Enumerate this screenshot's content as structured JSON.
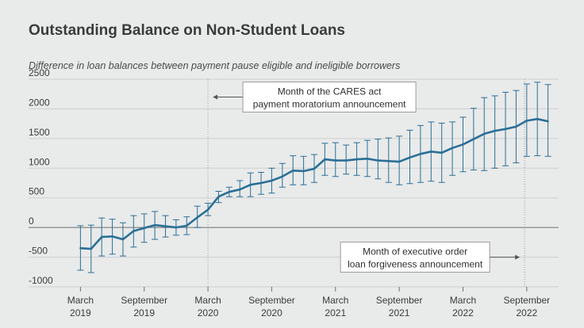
{
  "chart_data": {
    "type": "line",
    "title": "Outstanding Balance on Non-Student Loans",
    "subtitle": "Difference in loan balances between payment pause eligible and ineligible borrowers",
    "xlabel": "",
    "ylabel": "",
    "ylim": [
      -1000,
      2500
    ],
    "yticks": [
      2500,
      2000,
      1500,
      1000,
      500,
      0,
      -500,
      -1000
    ],
    "ytick_labels": [
      "2500",
      "2000",
      "1500",
      "1000",
      "500",
      "0",
      "-500",
      "-1000"
    ],
    "xticks": [
      {
        "month": 0,
        "line1": "March",
        "line2": "2019"
      },
      {
        "month": 6,
        "line1": "September",
        "line2": "2019"
      },
      {
        "month": 12,
        "line1": "March",
        "line2": "2020"
      },
      {
        "month": 18,
        "line1": "September",
        "line2": "2020"
      },
      {
        "month": 24,
        "line1": "March",
        "line2": "2021"
      },
      {
        "month": 30,
        "line1": "September",
        "line2": "2021"
      },
      {
        "month": 36,
        "line1": "March",
        "line2": "2022"
      },
      {
        "month": 42,
        "line1": "September",
        "line2": "2022"
      }
    ],
    "grid": true,
    "series": [
      {
        "color": "#2a6f97",
        "points": [
          {
            "x": 0,
            "y": -350,
            "lo": -720,
            "hi": 30
          },
          {
            "x": 1,
            "y": -360,
            "lo": -760,
            "hi": 40
          },
          {
            "x": 2,
            "y": -160,
            "lo": -480,
            "hi": 160
          },
          {
            "x": 3,
            "y": -150,
            "lo": -450,
            "hi": 140
          },
          {
            "x": 4,
            "y": -200,
            "lo": -480,
            "hi": 80
          },
          {
            "x": 5,
            "y": -60,
            "lo": -330,
            "hi": 200
          },
          {
            "x": 6,
            "y": -10,
            "lo": -250,
            "hi": 230
          },
          {
            "x": 7,
            "y": 40,
            "lo": -200,
            "hi": 270
          },
          {
            "x": 8,
            "y": 20,
            "lo": -160,
            "hi": 200
          },
          {
            "x": 9,
            "y": 0,
            "lo": -130,
            "hi": 130
          },
          {
            "x": 10,
            "y": 30,
            "lo": -120,
            "hi": 180
          },
          {
            "x": 11,
            "y": 170,
            "lo": 0,
            "hi": 360
          },
          {
            "x": 12,
            "y": 300,
            "lo": 200,
            "hi": 410
          },
          {
            "x": 13,
            "y": 520,
            "lo": 420,
            "hi": 610
          },
          {
            "x": 14,
            "y": 600,
            "lo": 520,
            "hi": 680
          },
          {
            "x": 15,
            "y": 640,
            "lo": 520,
            "hi": 790
          },
          {
            "x": 16,
            "y": 720,
            "lo": 520,
            "hi": 920
          },
          {
            "x": 17,
            "y": 750,
            "lo": 560,
            "hi": 930
          },
          {
            "x": 18,
            "y": 790,
            "lo": 580,
            "hi": 1000
          },
          {
            "x": 19,
            "y": 860,
            "lo": 680,
            "hi": 1080
          },
          {
            "x": 20,
            "y": 960,
            "lo": 720,
            "hi": 1210
          },
          {
            "x": 21,
            "y": 950,
            "lo": 720,
            "hi": 1200
          },
          {
            "x": 22,
            "y": 990,
            "lo": 760,
            "hi": 1230
          },
          {
            "x": 23,
            "y": 1150,
            "lo": 880,
            "hi": 1420
          },
          {
            "x": 24,
            "y": 1130,
            "lo": 860,
            "hi": 1430
          },
          {
            "x": 25,
            "y": 1130,
            "lo": 900,
            "hi": 1390
          },
          {
            "x": 26,
            "y": 1150,
            "lo": 880,
            "hi": 1430
          },
          {
            "x": 27,
            "y": 1160,
            "lo": 860,
            "hi": 1470
          },
          {
            "x": 28,
            "y": 1130,
            "lo": 820,
            "hi": 1490
          },
          {
            "x": 29,
            "y": 1120,
            "lo": 760,
            "hi": 1510
          },
          {
            "x": 30,
            "y": 1110,
            "lo": 720,
            "hi": 1540
          },
          {
            "x": 31,
            "y": 1180,
            "lo": 740,
            "hi": 1640
          },
          {
            "x": 32,
            "y": 1240,
            "lo": 760,
            "hi": 1720
          },
          {
            "x": 33,
            "y": 1280,
            "lo": 780,
            "hi": 1780
          },
          {
            "x": 34,
            "y": 1260,
            "lo": 760,
            "hi": 1760
          },
          {
            "x": 35,
            "y": 1340,
            "lo": 880,
            "hi": 1780
          },
          {
            "x": 36,
            "y": 1400,
            "lo": 940,
            "hi": 1860
          },
          {
            "x": 37,
            "y": 1490,
            "lo": 970,
            "hi": 2010
          },
          {
            "x": 38,
            "y": 1580,
            "lo": 960,
            "hi": 2190
          },
          {
            "x": 39,
            "y": 1630,
            "lo": 1000,
            "hi": 2220
          },
          {
            "x": 40,
            "y": 1660,
            "lo": 1040,
            "hi": 2280
          },
          {
            "x": 41,
            "y": 1700,
            "lo": 1090,
            "hi": 2310
          },
          {
            "x": 42,
            "y": 1800,
            "lo": 1200,
            "hi": 2420
          },
          {
            "x": 43,
            "y": 1830,
            "lo": 1210,
            "hi": 2450
          },
          {
            "x": 44,
            "y": 1790,
            "lo": 1200,
            "hi": 2410
          }
        ]
      }
    ],
    "annotations": [
      {
        "line1": "Month of the CARES act",
        "line2": "payment moratorium announcement",
        "month": 12,
        "y": 2200,
        "arrow": "left"
      },
      {
        "line1": "Month of executive order",
        "line2": "loan forgiveness announcement",
        "month": 41.8,
        "y": -500,
        "arrow": "right"
      }
    ]
  }
}
